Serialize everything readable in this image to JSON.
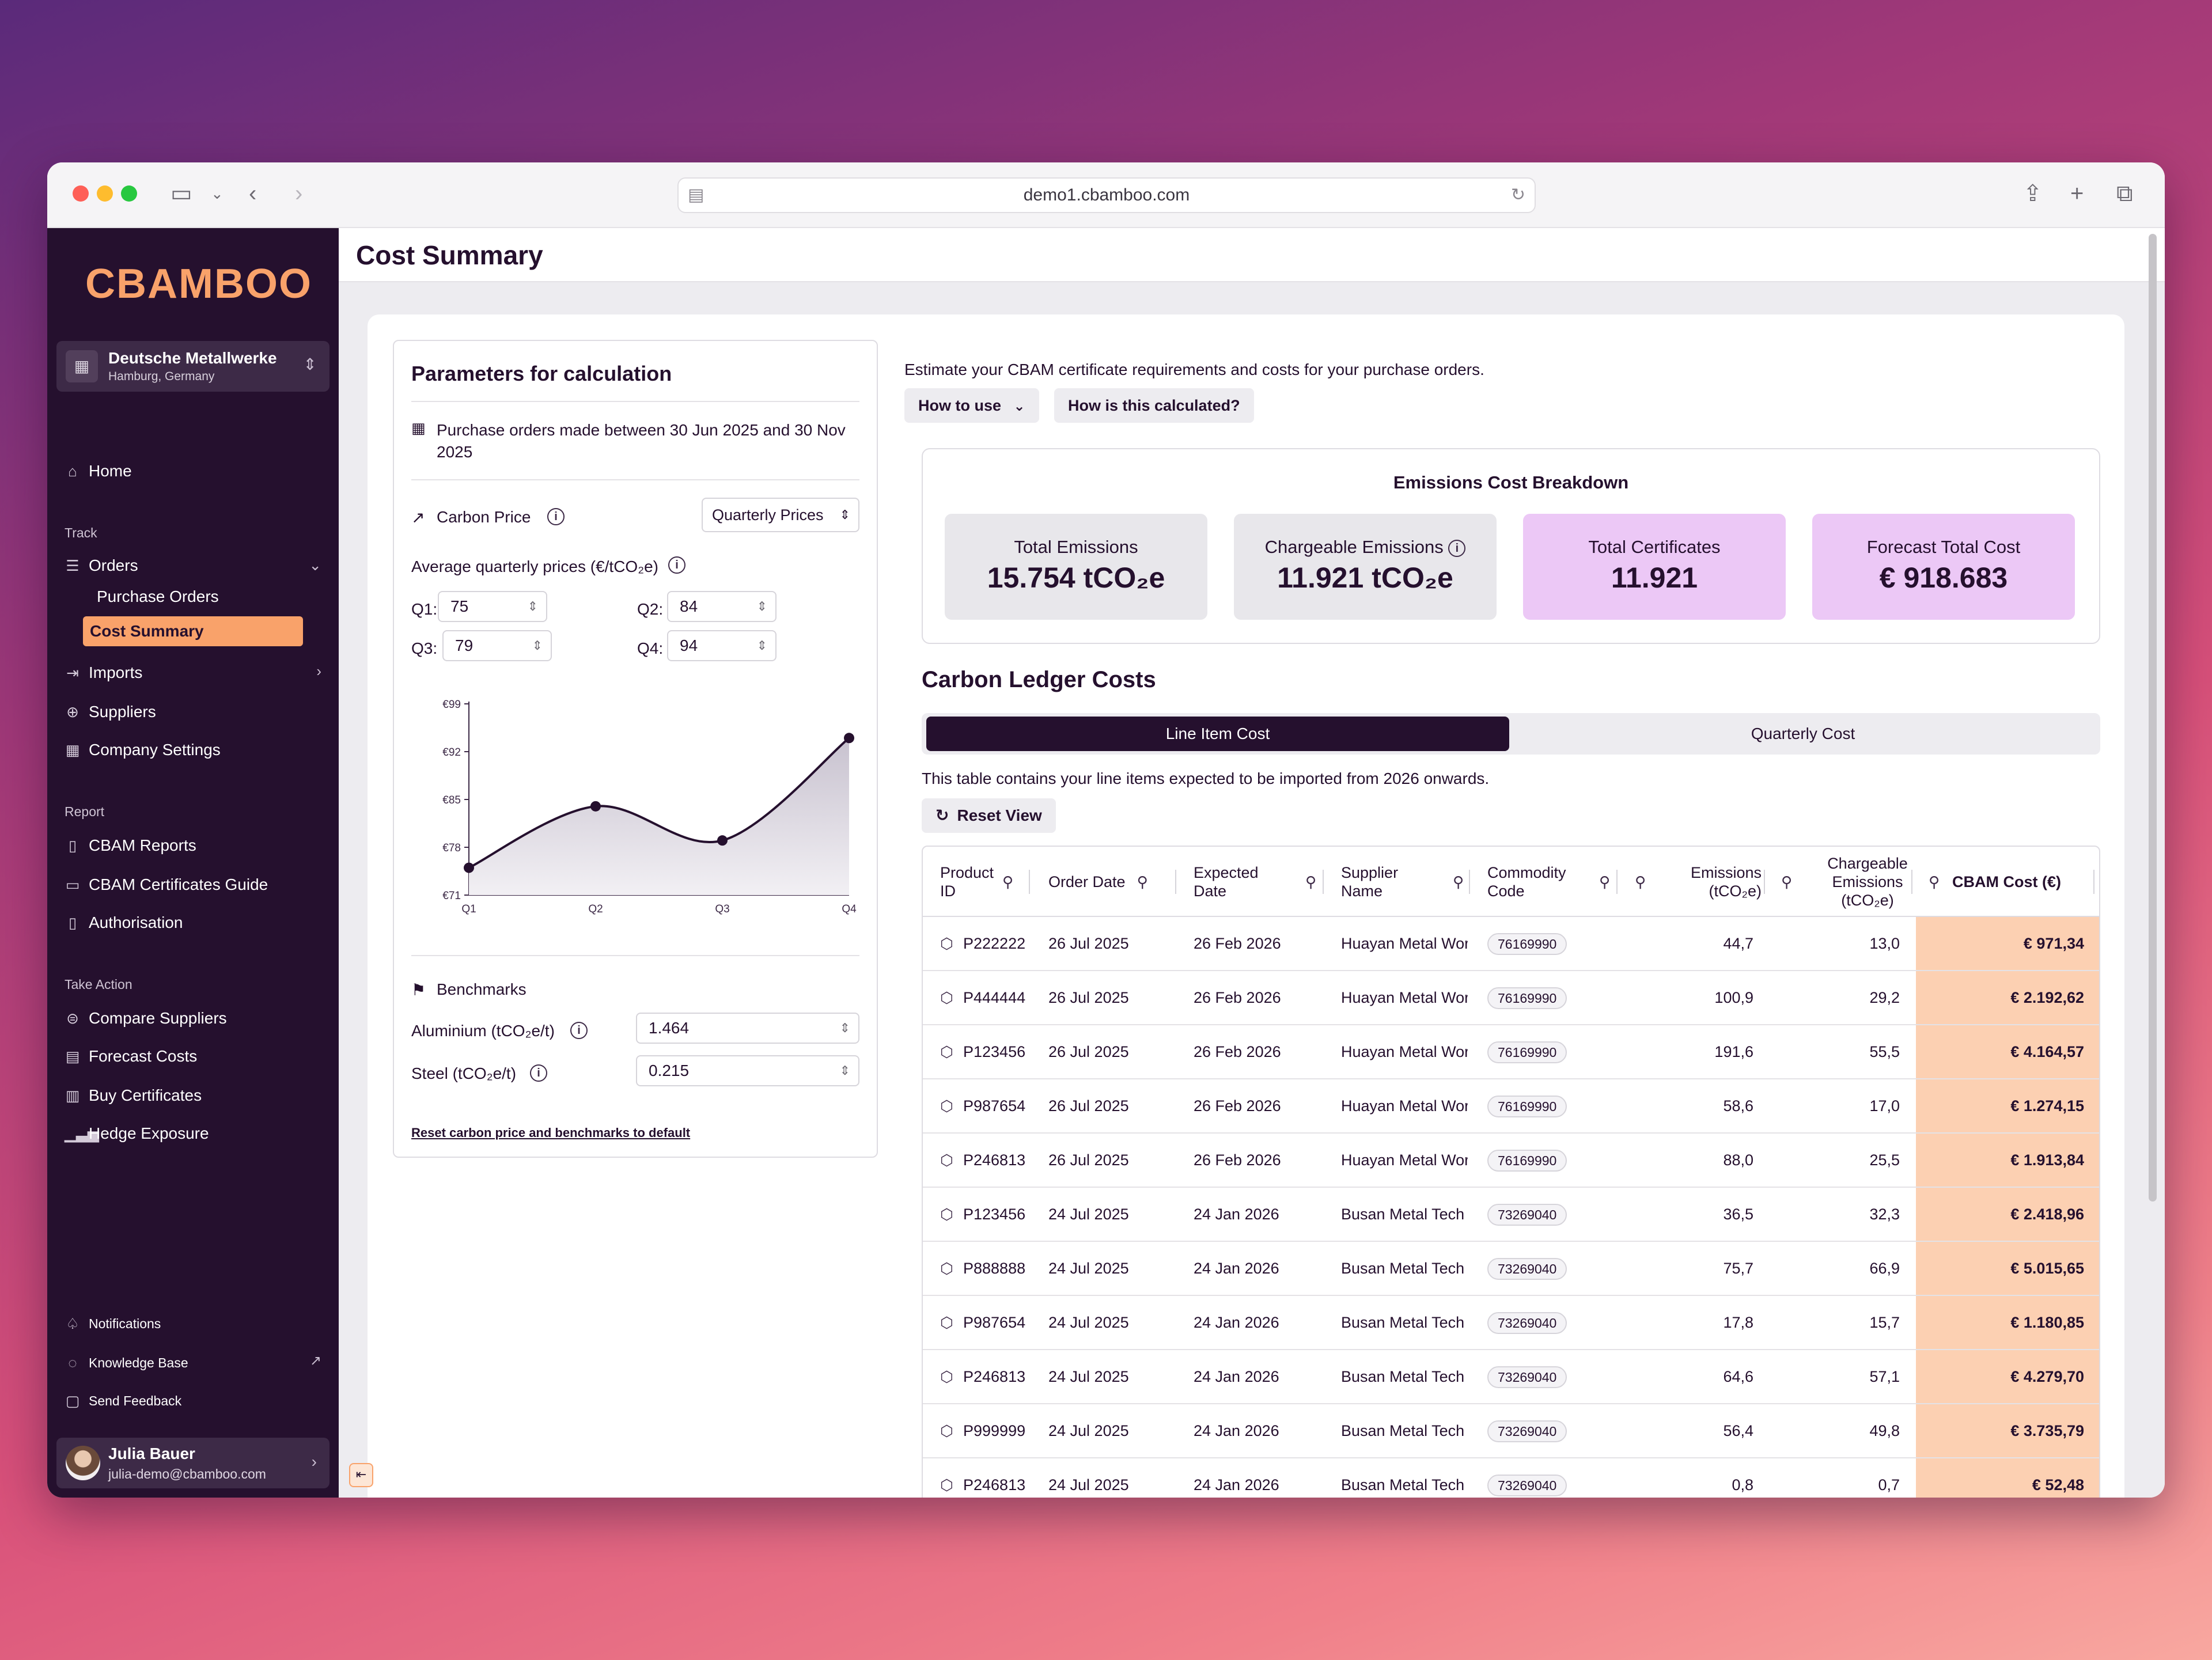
{
  "browser": {
    "url": "demo1.cbamboo.com"
  },
  "sidebar": {
    "logo": "CBAMBOO",
    "org": {
      "name": "Deutsche Metallwerke",
      "location": "Hamburg, Germany"
    },
    "home": "Home",
    "sections": {
      "track": "Track",
      "report": "Report",
      "take_action": "Take Action"
    },
    "orders": "Orders",
    "purchase_orders": "Purchase Orders",
    "cost_summary": "Cost Summary",
    "imports": "Imports",
    "suppliers": "Suppliers",
    "company_settings": "Company Settings",
    "cbam_reports": "CBAM Reports",
    "cbam_certificates_guide": "CBAM Certificates Guide",
    "authorisation": "Authorisation",
    "compare_suppliers": "Compare Suppliers",
    "forecast_costs": "Forecast Costs",
    "buy_certificates": "Buy Certificates",
    "hedge_exposure": "Hedge Exposure",
    "notifications": "Notifications",
    "knowledge_base": "Knowledge Base",
    "send_feedback": "Send Feedback",
    "user": {
      "name": "Julia Bauer",
      "email": "julia-demo@cbamboo.com"
    }
  },
  "page": {
    "title": "Cost Summary"
  },
  "params": {
    "title": "Parameters for calculation",
    "date_range": "Purchase orders made between 30 Jun 2025 and 30 Nov 2025",
    "carbon_price_label": "Carbon Price",
    "price_mode": "Quarterly Prices",
    "avg_label": "Average quarterly prices (€/tCO₂e)",
    "q1_label": "Q1:",
    "q1": "75",
    "q2_label": "Q2:",
    "q2": "84",
    "q3_label": "Q3:",
    "q3": "79",
    "q4_label": "Q4:",
    "q4": "94",
    "benchmarks_label": "Benchmarks",
    "aluminium_label": "Aluminium (tCO₂e/t)",
    "aluminium": "1.464",
    "steel_label": "Steel (tCO₂e/t)",
    "steel": "0.215",
    "reset_link": "Reset carbon price and benchmarks to default"
  },
  "chart_data": {
    "type": "area",
    "categories": [
      "Q1",
      "Q2",
      "Q3",
      "Q4"
    ],
    "values": [
      75,
      84,
      79,
      94
    ],
    "yticks": [
      "€99",
      "€92",
      "€85",
      "€78",
      "€71"
    ],
    "ylim": [
      71,
      99
    ]
  },
  "intro": {
    "text": "Estimate your CBAM certificate requirements and costs for your purchase orders.",
    "how_to_use": "How to use",
    "how_calculated": "How is this calculated?"
  },
  "breakdown": {
    "title": "Emissions Cost Breakdown",
    "total_emissions_label": "Total Emissions",
    "total_emissions": "15.754 tCO₂e",
    "chargeable_label": "Chargeable Emissions",
    "chargeable": "11.921 tCO₂e",
    "certificates_label": "Total Certificates",
    "certificates": "11.921",
    "forecast_label": "Forecast Total Cost",
    "forecast": "€ 918.683"
  },
  "ledger": {
    "title": "Carbon Ledger Costs",
    "tab_line": "Line Item Cost",
    "tab_quarter": "Quarterly Cost",
    "note": "This table contains your line items expected to be imported from 2026 onwards.",
    "reset_view": "Reset View",
    "headers": {
      "product_id": "Product ID",
      "order_date": "Order Date",
      "expected_date": "Expected Date",
      "supplier": "Supplier Name",
      "commodity": "Commodity Code",
      "emissions": "Emissions (tCO₂e)",
      "chargeable": "Chargeable Emissions (tCO₂e)",
      "cost": "CBAM Cost (€)"
    },
    "rows": [
      {
        "id": "P222222",
        "order": "26 Jul 2025",
        "expected": "26 Feb 2026",
        "supplier": "Huayan Metal Wor",
        "code": "76169990",
        "emissions": "44,7",
        "chargeable": "13,0",
        "cost": "€ 971,34"
      },
      {
        "id": "P444444",
        "order": "26 Jul 2025",
        "expected": "26 Feb 2026",
        "supplier": "Huayan Metal Wor",
        "code": "76169990",
        "emissions": "100,9",
        "chargeable": "29,2",
        "cost": "€ 2.192,62"
      },
      {
        "id": "P123456",
        "order": "26 Jul 2025",
        "expected": "26 Feb 2026",
        "supplier": "Huayan Metal Wor",
        "code": "76169990",
        "emissions": "191,6",
        "chargeable": "55,5",
        "cost": "€ 4.164,57"
      },
      {
        "id": "P987654",
        "order": "26 Jul 2025",
        "expected": "26 Feb 2026",
        "supplier": "Huayan Metal Wor",
        "code": "76169990",
        "emissions": "58,6",
        "chargeable": "17,0",
        "cost": "€ 1.274,15"
      },
      {
        "id": "P246813",
        "order": "26 Jul 2025",
        "expected": "26 Feb 2026",
        "supplier": "Huayan Metal Wor",
        "code": "76169990",
        "emissions": "88,0",
        "chargeable": "25,5",
        "cost": "€ 1.913,84"
      },
      {
        "id": "P123456",
        "order": "24 Jul 2025",
        "expected": "24 Jan 2026",
        "supplier": "Busan Metal Tech",
        "code": "73269040",
        "emissions": "36,5",
        "chargeable": "32,3",
        "cost": "€ 2.418,96"
      },
      {
        "id": "P888888",
        "order": "24 Jul 2025",
        "expected": "24 Jan 2026",
        "supplier": "Busan Metal Tech",
        "code": "73269040",
        "emissions": "75,7",
        "chargeable": "66,9",
        "cost": "€ 5.015,65"
      },
      {
        "id": "P987654",
        "order": "24 Jul 2025",
        "expected": "24 Jan 2026",
        "supplier": "Busan Metal Tech",
        "code": "73269040",
        "emissions": "17,8",
        "chargeable": "15,7",
        "cost": "€ 1.180,85"
      },
      {
        "id": "P246813",
        "order": "24 Jul 2025",
        "expected": "24 Jan 2026",
        "supplier": "Busan Metal Tech",
        "code": "73269040",
        "emissions": "64,6",
        "chargeable": "57,1",
        "cost": "€ 4.279,70"
      },
      {
        "id": "P999999",
        "order": "24 Jul 2025",
        "expected": "24 Jan 2026",
        "supplier": "Busan Metal Tech",
        "code": "73269040",
        "emissions": "56,4",
        "chargeable": "49,8",
        "cost": "€ 3.735,79"
      },
      {
        "id": "P246813",
        "order": "24 Jul 2025",
        "expected": "24 Jan 2026",
        "supplier": "Busan Metal Tech",
        "code": "73269040",
        "emissions": "0,8",
        "chargeable": "0,7",
        "cost": "€ 52,48"
      }
    ]
  }
}
